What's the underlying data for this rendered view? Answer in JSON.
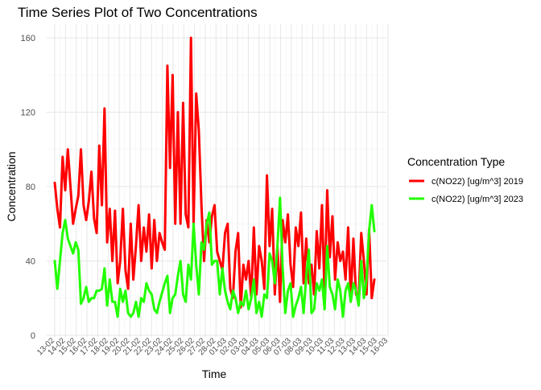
{
  "chart_data": {
    "type": "line",
    "title": "Time Series Plot of Two Concentrations",
    "xlabel": "Time",
    "ylabel": "Concentration",
    "ylim": [
      0,
      165
    ],
    "y_ticks": [
      0,
      40,
      80,
      120,
      160
    ],
    "x_tick_labels": [
      "13-02",
      "14-02",
      "15-02",
      "16-02",
      "17-02",
      "18-02",
      "19-02",
      "20-02",
      "21-02",
      "22-02",
      "23-02",
      "24-02",
      "25-02",
      "26-02",
      "27-02",
      "28-02",
      "01-03",
      "02-03",
      "03-03",
      "04-03",
      "05-03",
      "06-03",
      "07-03",
      "08-03",
      "09-03",
      "10-03",
      "11-03",
      "12-03",
      "13-03",
      "14-03",
      "15-03",
      "16-03"
    ],
    "grid": true,
    "legend_title": "Concentration Type",
    "legend_position": "right",
    "series": [
      {
        "name": "c(NO22) [ug/m^3] 2019",
        "color": "#ff0000",
        "values": [
          82,
          68,
          58,
          96,
          78,
          100,
          80,
          60,
          68,
          75,
          100,
          70,
          62,
          72,
          88,
          63,
          55,
          102,
          70,
          122,
          50,
          68,
          40,
          67,
          28,
          40,
          68,
          35,
          25,
          60,
          30,
          48,
          70,
          40,
          58,
          45,
          65,
          36,
          62,
          40,
          55,
          50,
          46,
          145,
          90,
          140,
          60,
          120,
          60,
          125,
          65,
          58,
          160,
          60,
          130,
          110,
          70,
          40,
          62,
          50,
          64,
          70,
          45,
          40,
          35,
          55,
          60,
          25,
          20,
          45,
          55,
          15,
          38,
          30,
          40,
          20,
          58,
          22,
          48,
          40,
          25,
          86,
          48,
          68,
          22,
          48,
          18,
          62,
          50,
          65,
          38,
          26,
          58,
          48,
          66,
          28,
          52,
          28,
          38,
          22,
          56,
          36,
          70,
          22,
          78,
          42,
          64,
          30,
          50,
          40,
          45,
          30,
          58,
          20,
          52,
          22,
          20,
          55,
          40,
          22,
          57,
          20,
          30
        ]
      },
      {
        "name": "c(NO22) [ug/m^3] 2023",
        "color": "#22ff00",
        "values": [
          40,
          25,
          40,
          55,
          62,
          52,
          48,
          44,
          50,
          46,
          17,
          20,
          26,
          18,
          20,
          20,
          24,
          24,
          25,
          36,
          16,
          30,
          18,
          18,
          10,
          25,
          18,
          24,
          12,
          10,
          12,
          18,
          10,
          20,
          18,
          28,
          24,
          22,
          14,
          12,
          18,
          23,
          28,
          32,
          12,
          20,
          22,
          32,
          40,
          22,
          18,
          38,
          30,
          60,
          38,
          22,
          50,
          46,
          60,
          66,
          38,
          40,
          40,
          22,
          36,
          24,
          18,
          14,
          24,
          20,
          12,
          18,
          16,
          24,
          14,
          20,
          30,
          12,
          18,
          10,
          22,
          20,
          44,
          40,
          28,
          48,
          74,
          36,
          12,
          24,
          28,
          10,
          16,
          20,
          26,
          12,
          32,
          46,
          12,
          14,
          28,
          24,
          30,
          14,
          48,
          26,
          22,
          14,
          30,
          24,
          10,
          24,
          28,
          18,
          28,
          24,
          16,
          40,
          20,
          30,
          56,
          70,
          56
        ]
      }
    ]
  }
}
